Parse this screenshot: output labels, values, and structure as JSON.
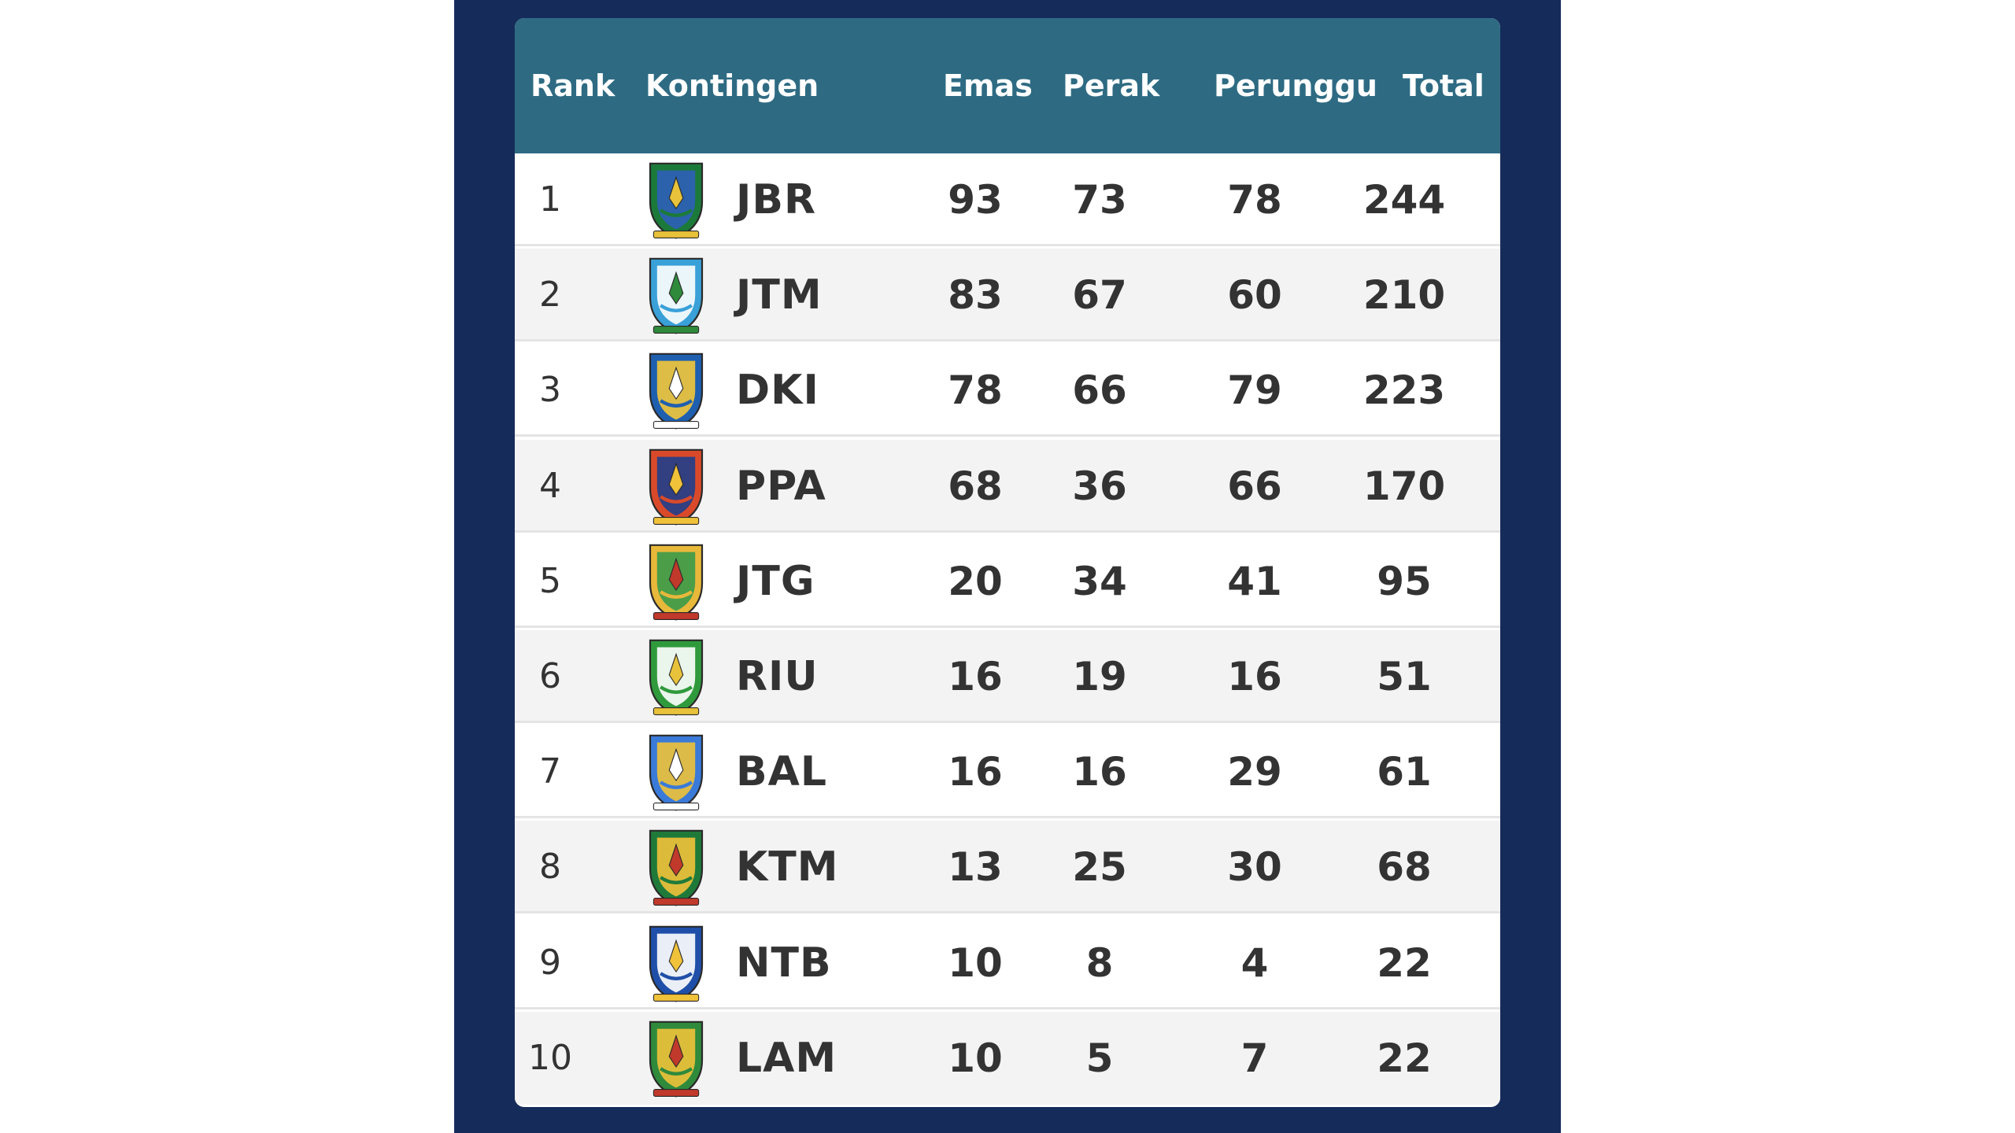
{
  "table": {
    "headers": {
      "rank": "Rank",
      "kontingen": "Kontingen",
      "emas": "Emas",
      "perak": "Perak",
      "perunggu": "Perunggu",
      "total": "Total"
    },
    "rows": [
      {
        "rank": "1",
        "code": "JBR",
        "emas": "93",
        "perak": "73",
        "perunggu": "78",
        "total": "244",
        "crest": {
          "icon": "jbr-crest-icon",
          "primary": "#1b7a3a",
          "secondary": "#2f5fb8",
          "accent": "#e8c23a"
        }
      },
      {
        "rank": "2",
        "code": "JTM",
        "emas": "83",
        "perak": "67",
        "perunggu": "60",
        "total": "210",
        "crest": {
          "icon": "jtm-crest-icon",
          "primary": "#3aa0d8",
          "secondary": "#ffffff",
          "accent": "#2f8a3c"
        }
      },
      {
        "rank": "3",
        "code": "DKI",
        "emas": "78",
        "perak": "66",
        "perunggu": "79",
        "total": "223",
        "crest": {
          "icon": "dki-crest-icon",
          "primary": "#1f5fb0",
          "secondary": "#f2c83a",
          "accent": "#ffffff"
        }
      },
      {
        "rank": "4",
        "code": "PPA",
        "emas": "68",
        "perak": "36",
        "perunggu": "66",
        "total": "170",
        "crest": {
          "icon": "ppa-crest-icon",
          "primary": "#d94a2a",
          "secondary": "#1f3e8a",
          "accent": "#f0c23a"
        }
      },
      {
        "rank": "5",
        "code": "JTG",
        "emas": "20",
        "perak": "34",
        "perunggu": "41",
        "total": "95",
        "crest": {
          "icon": "jtg-crest-icon",
          "primary": "#e8b83a",
          "secondary": "#3a9a4a",
          "accent": "#c0392b"
        }
      },
      {
        "rank": "6",
        "code": "RIU",
        "emas": "16",
        "perak": "19",
        "perunggu": "16",
        "total": "51",
        "crest": {
          "icon": "riu-crest-icon",
          "primary": "#2f9a3c",
          "secondary": "#ffffff",
          "accent": "#e8c23a"
        }
      },
      {
        "rank": "7",
        "code": "BAL",
        "emas": "16",
        "perak": "16",
        "perunggu": "29",
        "total": "61",
        "crest": {
          "icon": "bal-crest-icon",
          "primary": "#3a7ad8",
          "secondary": "#f0c23a",
          "accent": "#ffffff"
        }
      },
      {
        "rank": "8",
        "code": "KTM",
        "emas": "13",
        "perak": "25",
        "perunggu": "30",
        "total": "68",
        "crest": {
          "icon": "ktm-crest-icon",
          "primary": "#1f7a3a",
          "secondary": "#f0c23a",
          "accent": "#c0392b"
        }
      },
      {
        "rank": "9",
        "code": "NTB",
        "emas": "10",
        "perak": "8",
        "perunggu": "4",
        "total": "22",
        "crest": {
          "icon": "ntb-crest-icon",
          "primary": "#1f4fa8",
          "secondary": "#ffffff",
          "accent": "#f0c23a"
        }
      },
      {
        "rank": "10",
        "code": "LAM",
        "emas": "10",
        "perak": "5",
        "perunggu": "7",
        "total": "22",
        "crest": {
          "icon": "lam-crest-icon",
          "primary": "#2f8a3c",
          "secondary": "#f0c23a",
          "accent": "#c0392b"
        }
      }
    ]
  },
  "colors": {
    "frame": "#152b5a",
    "header": "#2e6b83",
    "header_text": "#ffffff",
    "row_text": "#333333",
    "row_alt": "#f3f3f3"
  }
}
